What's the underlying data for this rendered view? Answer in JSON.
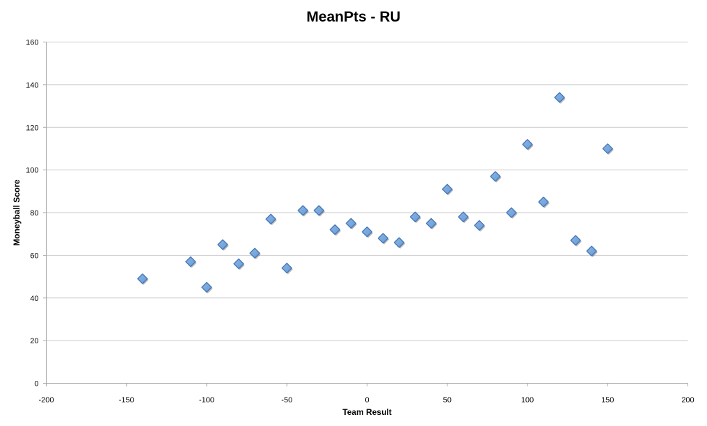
{
  "chart_data": {
    "type": "scatter",
    "title": "MeanPts - RU",
    "xlabel": "Team Result",
    "ylabel": "Moneyball Score",
    "xlim": [
      -200,
      200
    ],
    "ylim": [
      0,
      160
    ],
    "x_ticks": [
      -200,
      -150,
      -100,
      -50,
      0,
      50,
      100,
      150,
      200
    ],
    "y_ticks": [
      0,
      20,
      40,
      60,
      80,
      100,
      120,
      140,
      160
    ],
    "grid": "horizontal-only",
    "legend_position": "none",
    "marker": {
      "shape": "diamond",
      "fill_light": "#8fb6e3",
      "fill_dark": "#639ad6",
      "stroke": "#4879b8",
      "shadow": "rgba(80,80,80,0.4)"
    },
    "colors": {
      "gridline": "#c9c9c9",
      "axis": "#a6a6a6",
      "text": "#000000",
      "background": "#ffffff"
    },
    "points": [
      [
        -140,
        49
      ],
      [
        -110,
        57
      ],
      [
        -100,
        45
      ],
      [
        -90,
        65
      ],
      [
        -80,
        56
      ],
      [
        -70,
        61
      ],
      [
        -60,
        77
      ],
      [
        -50,
        54
      ],
      [
        -40,
        81
      ],
      [
        -30,
        81
      ],
      [
        -20,
        72
      ],
      [
        -10,
        75
      ],
      [
        0,
        71
      ],
      [
        10,
        68
      ],
      [
        20,
        66
      ],
      [
        30,
        78
      ],
      [
        40,
        75
      ],
      [
        50,
        91
      ],
      [
        60,
        78
      ],
      [
        70,
        74
      ],
      [
        80,
        97
      ],
      [
        90,
        80
      ],
      [
        100,
        112
      ],
      [
        110,
        85
      ],
      [
        120,
        134
      ],
      [
        130,
        67
      ],
      [
        140,
        62
      ],
      [
        150,
        110
      ]
    ]
  }
}
